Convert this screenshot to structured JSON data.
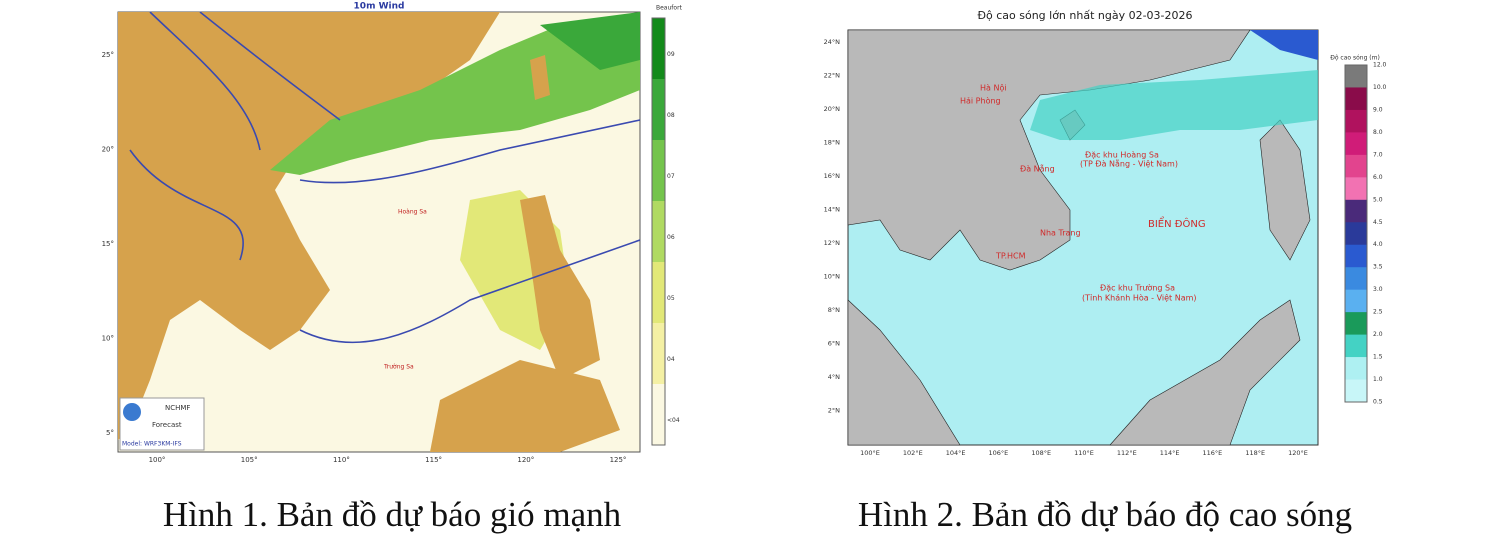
{
  "figure1": {
    "title": "10m Wind",
    "legend_title": "Beaufort",
    "legend_labels": [
      "09",
      "08",
      "07",
      "06",
      "05",
      "04",
      "<04"
    ],
    "legend_colors": [
      "#138a1a",
      "#3aa83a",
      "#74c44c",
      "#b0da62",
      "#e2e878",
      "#f4f0a4",
      "#fbf8e2"
    ],
    "lat_labels": [
      "25°",
      "20°",
      "15°",
      "10°",
      "5°"
    ],
    "lon_labels": [
      "100°",
      "105°",
      "110°",
      "115°",
      "120°",
      "125°"
    ],
    "places": [
      "Hoàng Sa",
      "Trường Sa"
    ],
    "logo_lines": [
      "NCHMF",
      "Forecast",
      "Model: WRF3KM-IFS"
    ],
    "caption": "Hình 1. Bản đồ dự báo gió mạnh"
  },
  "figure2": {
    "title": "Độ cao sóng lớn nhất ngày 02-03-2026",
    "legend_title": "Độ cao sóng (m)",
    "legend_labels": [
      "12.0",
      "10.0",
      "9.0",
      "8.0",
      "7.0",
      "6.0",
      "5.0",
      "4.5",
      "4.0",
      "3.5",
      "3.0",
      "2.5",
      "2.0",
      "1.5",
      "1.0",
      "0.5"
    ],
    "legend_colors": [
      "#7a7a7a",
      "#8a0c4a",
      "#b0125e",
      "#d01c78",
      "#e2448e",
      "#f272b2",
      "#4a2a7a",
      "#2a3a9a",
      "#2a5ad0",
      "#3a8ae0",
      "#5ab0f0",
      "#1a9a5a",
      "#44d2c4",
      "#aef0f2",
      "#c8f6f8"
    ],
    "lat_labels": [
      "24°N",
      "22°N",
      "20°N",
      "18°N",
      "16°N",
      "14°N",
      "12°N",
      "10°N",
      "8°N",
      "6°N",
      "4°N",
      "2°N"
    ],
    "lon_labels": [
      "100°E",
      "102°E",
      "104°E",
      "106°E",
      "108°E",
      "110°E",
      "112°E",
      "114°E",
      "116°E",
      "118°E",
      "120°E"
    ],
    "places": [
      "Hà Nội",
      "Hải Phòng",
      "Đà Nẵng",
      "Đặc khu Hoàng Sa",
      "(TP Đà Nẵng - Việt Nam)",
      "BIỂN ĐÔNG",
      "Nha Trang",
      "TP.HCM",
      "Đặc khu Trường Sa",
      "(Tỉnh Khánh Hòa - Việt Nam)"
    ],
    "caption": "Hình 2. Bản đồ dự báo độ cao sóng"
  }
}
